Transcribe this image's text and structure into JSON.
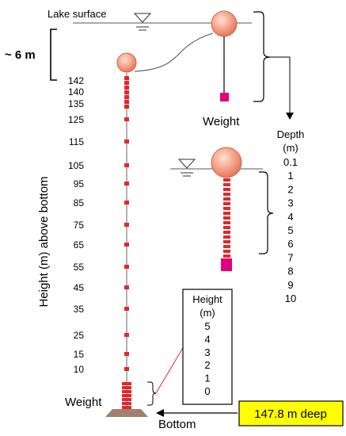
{
  "labels": {
    "lake_surface": "Lake surface",
    "approx_depth": "~ 6 m",
    "weight_top": "Weight",
    "weight_bottom": "Weight",
    "bottom": "Bottom",
    "y_axis": "Height (m) above bottom",
    "depth_header": "Depth",
    "depth_unit": "(m)",
    "height_box_header": "Height",
    "height_box_unit": "(m)",
    "deep_badge": "147.8 m deep"
  },
  "height_ticks": [
    "142",
    "140",
    "135",
    "125",
    "115",
    "105",
    "95",
    "85",
    "75",
    "65",
    "55",
    "45",
    "35",
    "25",
    "15",
    "10"
  ],
  "depth_ticks": [
    "0.1",
    "1",
    "2",
    "3",
    "4",
    "5",
    "6",
    "7",
    "8",
    "9",
    "10"
  ],
  "height_box_ticks": [
    "5",
    "4",
    "3",
    "2",
    "1",
    "0"
  ],
  "colors": {
    "buoy": "#f7a58a",
    "sensor": "#e0282a",
    "weight": "#e0007a",
    "badge_fill": "#ffff00",
    "anchor": "#a08070"
  }
}
